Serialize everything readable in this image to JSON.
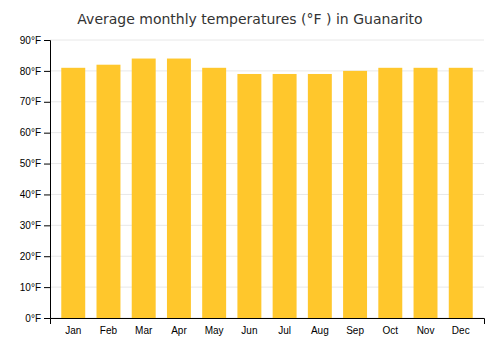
{
  "chart_data": {
    "type": "bar",
    "title": "Average monthly temperatures (°F ) in Guanarito",
    "categories": [
      "Jan",
      "Feb",
      "Mar",
      "Apr",
      "May",
      "Jun",
      "Jul",
      "Aug",
      "Sep",
      "Oct",
      "Nov",
      "Dec"
    ],
    "values": [
      81,
      82,
      84,
      84,
      81,
      79,
      79,
      79,
      80,
      81,
      81,
      81
    ],
    "color": "#FFC72C",
    "ylim": [
      0,
      90
    ],
    "yticks": [
      {
        "value": 0,
        "label": "0°F"
      },
      {
        "value": 10,
        "label": "10°F"
      },
      {
        "value": 20,
        "label": "20°F"
      },
      {
        "value": 30,
        "label": "30°F"
      },
      {
        "value": 40,
        "label": "40°F"
      },
      {
        "value": 50,
        "label": "50°F"
      },
      {
        "value": 60,
        "label": "60°F"
      },
      {
        "value": 70,
        "label": "70°F"
      },
      {
        "value": 80,
        "label": "80°F"
      },
      {
        "value": 90,
        "label": "90°F"
      }
    ],
    "grid": true
  }
}
